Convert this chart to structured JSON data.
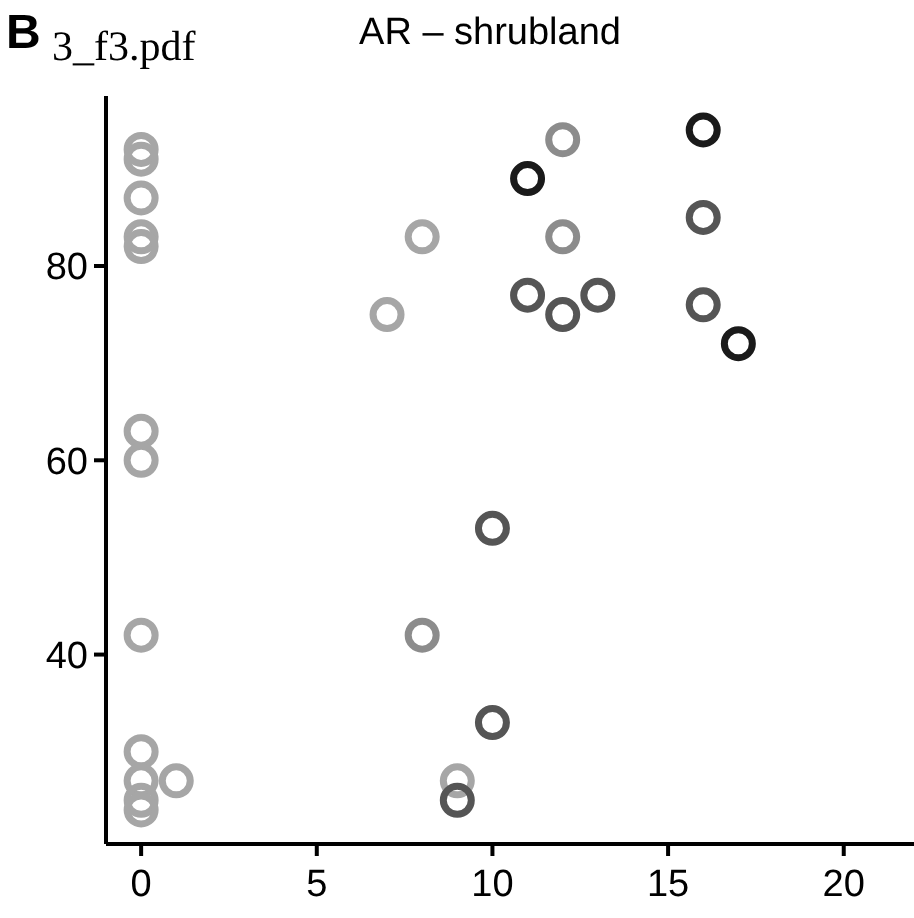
{
  "chart_data": {
    "type": "scatter",
    "title": "AR – shrubland",
    "annotations": [
      "B",
      "3_f3.pdf"
    ],
    "marker": "circle",
    "grid": false,
    "xlim": [
      -1,
      22
    ],
    "xticks": [
      0,
      5,
      10,
      15,
      20
    ],
    "ylim": [
      20.5,
      97.5
    ],
    "yticks": [
      40,
      60,
      80
    ],
    "series": [
      {
        "color": "#a6a6a6",
        "x": [
          0,
          0,
          0,
          0,
          0,
          0,
          0,
          0,
          0,
          0,
          0,
          0,
          1,
          8,
          7,
          9
        ],
        "values": [
          92,
          91,
          87,
          83,
          82,
          63,
          60,
          42,
          30,
          27,
          25,
          24,
          27,
          83,
          75,
          27
        ]
      },
      {
        "color": "#8c8c8c",
        "x": [
          12,
          12,
          8
        ],
        "values": [
          93,
          83,
          42
        ]
      },
      {
        "color": "#555555",
        "x": [
          11,
          12,
          13,
          16,
          16,
          10,
          10,
          9
        ],
        "values": [
          77,
          75,
          77,
          85,
          76,
          53,
          33,
          25
        ]
      },
      {
        "color": "#1a1a1a",
        "x": [
          11,
          16,
          17
        ],
        "values": [
          89,
          94,
          72
        ]
      }
    ]
  }
}
